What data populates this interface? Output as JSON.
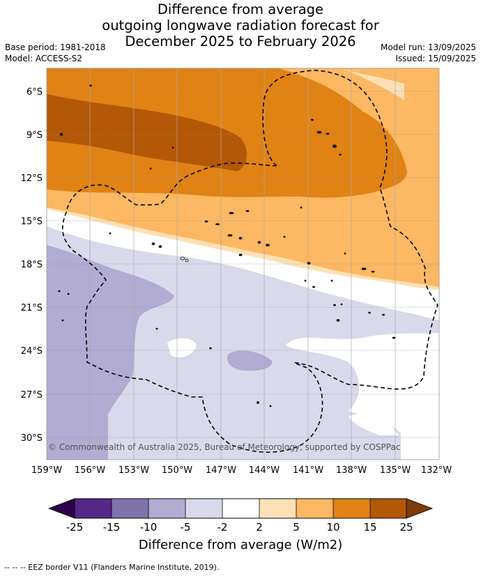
{
  "title": {
    "line1": "Difference from average",
    "line2": "outgoing longwave radiation forecast for",
    "line3": "December 2025 to February 2026"
  },
  "meta": {
    "base_period": "Base period: 1981-2018",
    "model": "Model: ACCESS-S2",
    "model_run": "Model run: 13/09/2025",
    "issued": "Issued: 15/09/2025"
  },
  "map": {
    "lat_labels": [
      "6°S",
      "9°S",
      "12°S",
      "15°S",
      "18°S",
      "21°S",
      "24°S",
      "27°S",
      "30°S"
    ],
    "lon_labels": [
      "159°W",
      "156°W",
      "153°W",
      "150°W",
      "147°W",
      "144°W",
      "141°W",
      "138°W",
      "135°W",
      "132°W"
    ],
    "copyright": "© Commonwealth of Australia 2025, Bureau of Meteorology, supported by COSPPac"
  },
  "colorbar": {
    "ticks": [
      "-25",
      "-15",
      "-10",
      "-5",
      "-2",
      "2",
      "5",
      "10",
      "15",
      "25"
    ],
    "colors": [
      "#2d004b",
      "#542788",
      "#8073ac",
      "#b2abd2",
      "#d8daeb",
      "#ffffff",
      "#fee0b6",
      "#fdb863",
      "#e08214",
      "#b35806",
      "#7f3b08"
    ],
    "label": "Difference from average (W/m2)"
  },
  "footnote": "-- -- -- EEZ border V11 (Flanders Marine Institute, 2019)."
}
